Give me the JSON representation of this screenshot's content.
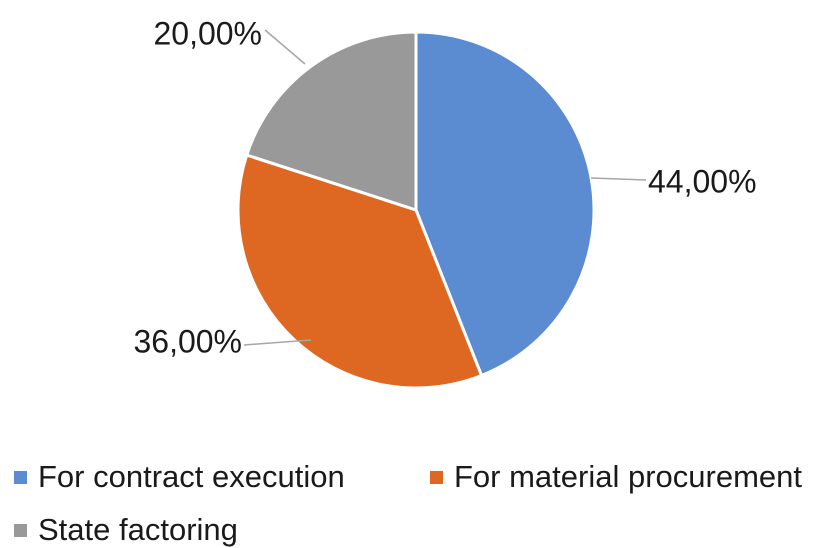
{
  "chart_data": {
    "type": "pie",
    "categories": [
      "For contract execution",
      "For material procurement",
      "State factoring"
    ],
    "values": [
      44,
      36,
      20
    ],
    "value_labels": [
      "44,00%",
      "36,00%",
      "20,00%"
    ],
    "colors": [
      "#5B8BD0",
      "#DE6821",
      "#999999"
    ],
    "title": "",
    "legend_position": "bottom"
  }
}
